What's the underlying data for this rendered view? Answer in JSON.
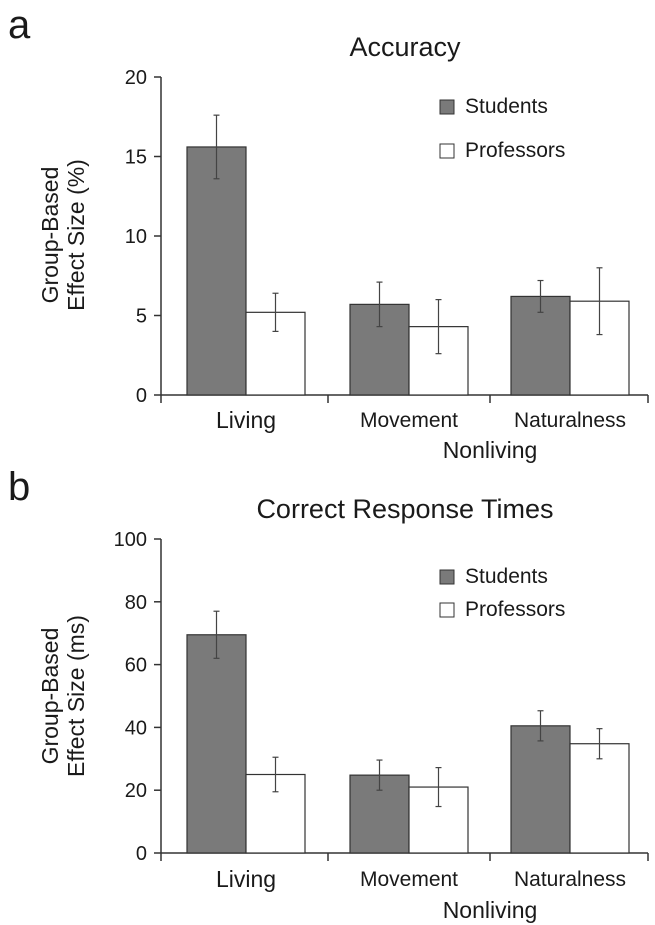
{
  "chart_data": [
    {
      "panel": "a",
      "type": "bar",
      "title": "Accuracy",
      "ylabel": [
        "Group-Based",
        "Effect Size (%)"
      ],
      "ylim": [
        0,
        20
      ],
      "yticks": [
        0,
        5,
        10,
        15,
        20
      ],
      "categories": [
        "Living",
        "Movement",
        "Naturalness"
      ],
      "group_label": "Nonliving",
      "legend_position": "top-right",
      "grid": false,
      "series": [
        {
          "name": "Students",
          "color": "#7a7a7a",
          "values": [
            15.6,
            5.7,
            6.2
          ],
          "errors": [
            2.0,
            1.4,
            1.0
          ]
        },
        {
          "name": "Professors",
          "color": "#ffffff",
          "values": [
            5.2,
            4.3,
            5.9
          ],
          "errors": [
            1.2,
            1.7,
            2.1
          ]
        }
      ]
    },
    {
      "panel": "b",
      "type": "bar",
      "title": "Correct Response Times",
      "ylabel": [
        "Group-Based",
        "Effect Size (ms)"
      ],
      "ylim": [
        0,
        100
      ],
      "yticks": [
        0,
        20,
        40,
        60,
        80,
        100
      ],
      "categories": [
        "Living",
        "Movement",
        "Naturalness"
      ],
      "group_label": "Nonliving",
      "legend_position": "top-right",
      "grid": false,
      "series": [
        {
          "name": "Students",
          "color": "#7a7a7a",
          "values": [
            69.5,
            24.8,
            40.5
          ],
          "errors": [
            7.5,
            4.8,
            4.8
          ]
        },
        {
          "name": "Professors",
          "color": "#ffffff",
          "values": [
            25.0,
            21.0,
            34.8
          ],
          "errors": [
            5.5,
            6.2,
            4.8
          ]
        }
      ]
    }
  ]
}
